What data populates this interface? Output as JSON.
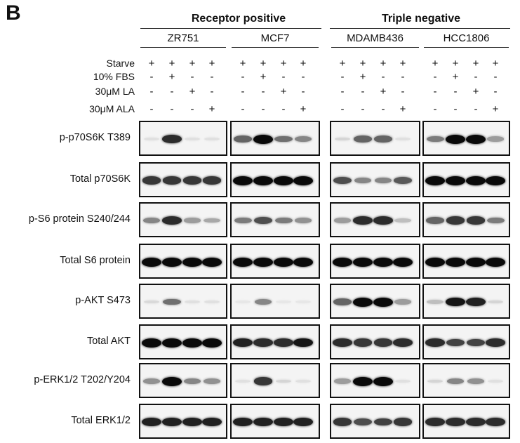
{
  "panel": "B",
  "groups": [
    {
      "label": "Receptor positive"
    },
    {
      "label": "Triple negative"
    }
  ],
  "cell_lines": [
    "ZR751",
    "MCF7",
    "MDAMB436",
    "HCC1806"
  ],
  "conditions": [
    {
      "label": "Starve",
      "marks": [
        "+",
        "+",
        "+",
        "+"
      ]
    },
    {
      "label": "10% FBS",
      "marks": [
        "-",
        "+",
        "-",
        "-"
      ]
    },
    {
      "label": "30μM LA",
      "marks": [
        "-",
        "-",
        "+",
        "-"
      ]
    },
    {
      "label": "30μM ALA",
      "marks": [
        "-",
        "-",
        "-",
        "+"
      ]
    }
  ],
  "rows": [
    {
      "label": "p-p70S6K T389"
    },
    {
      "label": "Total p70S6K"
    },
    {
      "label": "p-S6 protein S240/244"
    },
    {
      "label": "Total S6 protein"
    },
    {
      "label": "p-AKT S473"
    },
    {
      "label": "Total AKT"
    },
    {
      "label": "p-ERK1/2 T202/Y204"
    },
    {
      "label": "Total ERK1/2"
    }
  ],
  "band_intensity": [
    [
      [
        0.05,
        0.85,
        0.05,
        0.05
      ],
      [
        0.6,
        1.0,
        0.55,
        0.45
      ],
      [
        0.1,
        0.6,
        0.6,
        0.05
      ],
      [
        0.5,
        1.0,
        1.0,
        0.35
      ]
    ],
    [
      [
        0.8,
        0.8,
        0.8,
        0.8
      ],
      [
        1.0,
        1.0,
        1.0,
        1.0
      ],
      [
        0.7,
        0.45,
        0.45,
        0.65
      ],
      [
        1.0,
        1.0,
        1.0,
        1.0
      ]
    ],
    [
      [
        0.45,
        0.85,
        0.35,
        0.3
      ],
      [
        0.5,
        0.7,
        0.5,
        0.4
      ],
      [
        0.35,
        0.85,
        0.85,
        0.2
      ],
      [
        0.6,
        0.8,
        0.8,
        0.5
      ]
    ],
    [
      [
        1.0,
        1.0,
        1.0,
        1.0
      ],
      [
        1.0,
        1.0,
        1.0,
        1.0
      ],
      [
        1.0,
        1.0,
        1.0,
        1.0
      ],
      [
        1.0,
        1.0,
        1.0,
        1.0
      ]
    ],
    [
      [
        0.08,
        0.55,
        0.05,
        0.05
      ],
      [
        0.02,
        0.45,
        0.02,
        0.02
      ],
      [
        0.6,
        1.0,
        1.0,
        0.35
      ],
      [
        0.2,
        0.95,
        0.9,
        0.1
      ]
    ],
    [
      [
        1.0,
        1.0,
        1.0,
        1.0
      ],
      [
        0.9,
        0.85,
        0.85,
        0.95
      ],
      [
        0.85,
        0.8,
        0.8,
        0.85
      ],
      [
        0.85,
        0.75,
        0.75,
        0.85
      ]
    ],
    [
      [
        0.4,
        1.0,
        0.45,
        0.4
      ],
      [
        0.05,
        0.8,
        0.1,
        0.05
      ],
      [
        0.35,
        1.0,
        1.0,
        0.05
      ],
      [
        0.1,
        0.45,
        0.4,
        0.05
      ]
    ],
    [
      [
        0.9,
        0.9,
        0.9,
        0.9
      ],
      [
        0.9,
        0.9,
        0.9,
        0.9
      ],
      [
        0.8,
        0.7,
        0.75,
        0.8
      ],
      [
        0.85,
        0.85,
        0.85,
        0.85
      ]
    ]
  ]
}
